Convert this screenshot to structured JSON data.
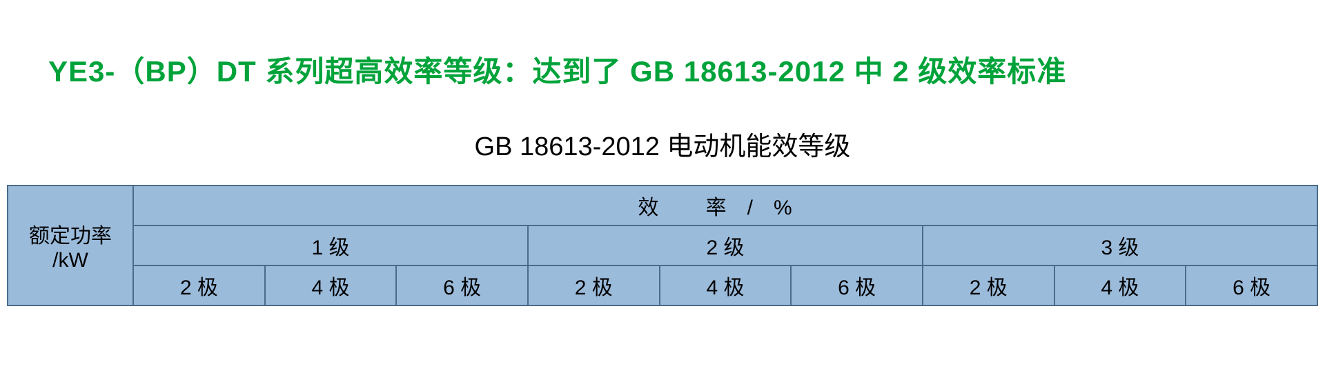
{
  "heading": "YE3-（BP）DT 系列超高效率等级：达到了 GB 18613-2012 中 2 级效率标准",
  "subheading": "GB 18613-2012 电动机能效等级",
  "table": {
    "border_color": "#4a6b8a",
    "header_bg": "#9bbbdb",
    "row_label_line1": "额定功率",
    "row_label_line2": "/kW",
    "efficiency_label": "效   率/%",
    "levels": [
      "1 级",
      "2 级",
      "3 级"
    ],
    "poles": [
      "2 极",
      "4 极",
      "6 极",
      "2 极",
      "4 极",
      "6 极",
      "2 极",
      "4 极",
      "6 极"
    ]
  }
}
